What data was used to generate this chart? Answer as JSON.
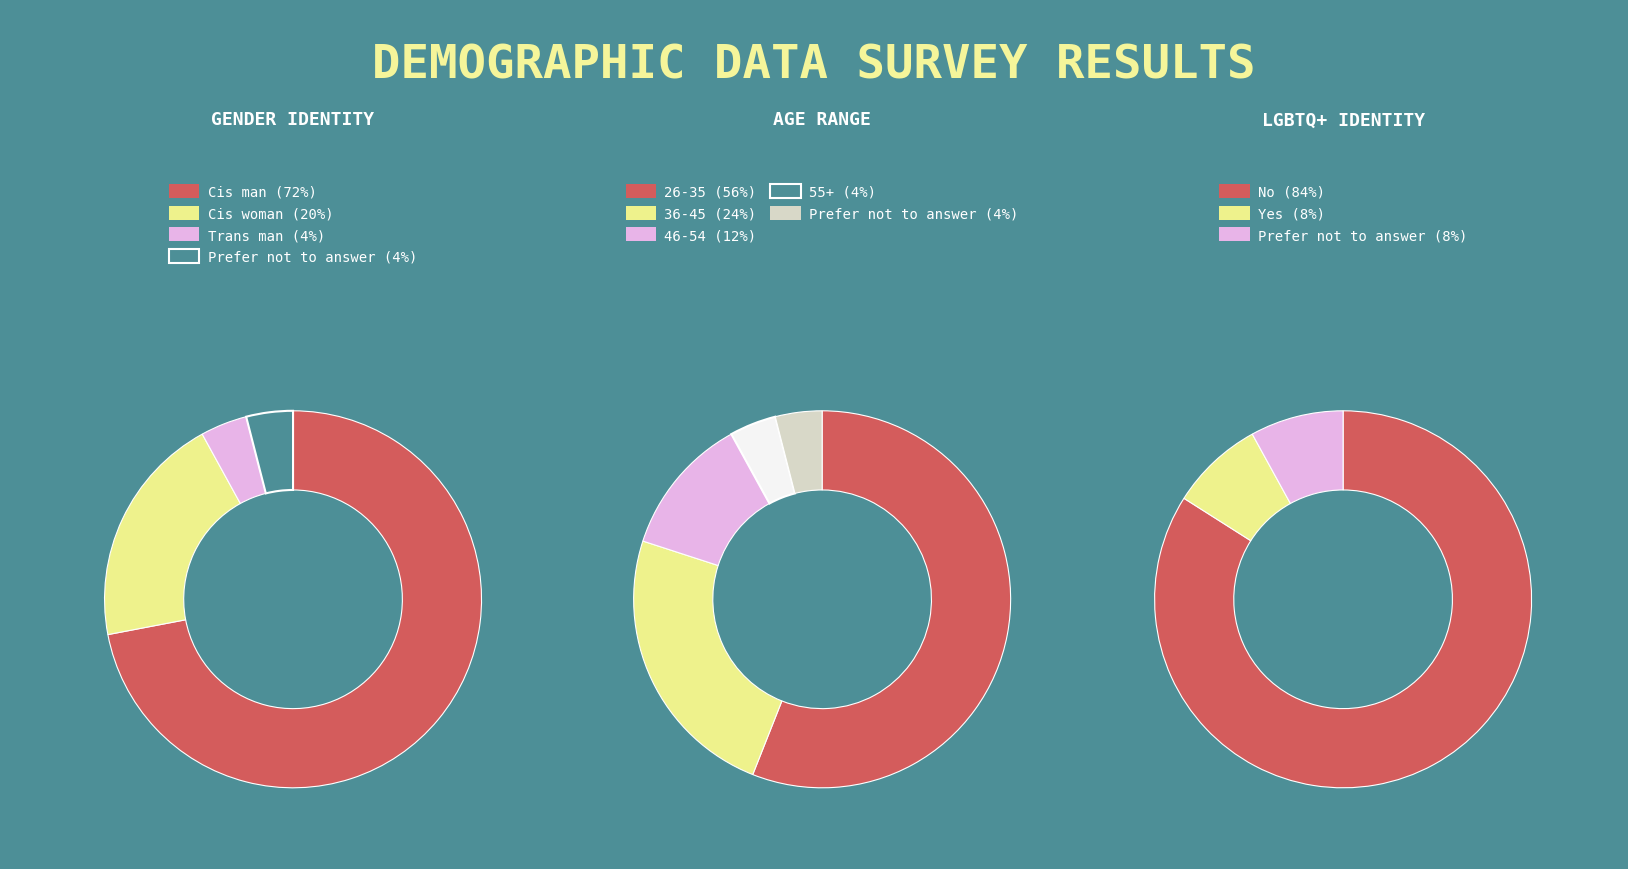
{
  "background_color": "#4d8f97",
  "title": "DEMOGRAPHIC DATA SURVEY RESULTS",
  "title_color": "#f5f59a",
  "title_fontsize": 34,
  "font_family": "monospace",
  "label_color": "#ffffff",
  "charts": [
    {
      "title": "GENDER IDENTITY",
      "labels": [
        "Cis man (72%)",
        "Cis woman (20%)",
        "Trans man (4%)",
        "Prefer not to answer (4%)"
      ],
      "values": [
        72,
        20,
        4,
        4
      ],
      "colors": [
        "#d45c5c",
        "#eef28c",
        "#e8b4e8",
        "#4d8f97"
      ],
      "patch_edge": [
        false,
        false,
        false,
        true
      ],
      "legend_ncol": 1
    },
    {
      "title": "AGE RANGE",
      "labels": [
        "26-35 (56%)",
        "36-45 (24%)",
        "46-54 (12%)",
        "55+ (4%)",
        "Prefer not to answer (4%)"
      ],
      "values": [
        56,
        24,
        12,
        4,
        4
      ],
      "colors": [
        "#d45c5c",
        "#eef28c",
        "#e8b4e8",
        "#f5f5f5",
        "#d8d8c8"
      ],
      "patch_edge": [
        false,
        false,
        false,
        true,
        false
      ],
      "legend_ncol": 2
    },
    {
      "title": "LGBTQ+ IDENTITY",
      "labels": [
        "No (84%)",
        "Yes (8%)",
        "Prefer not to answer (8%)"
      ],
      "values": [
        84,
        8,
        8
      ],
      "colors": [
        "#d45c5c",
        "#eef28c",
        "#e8b4e8"
      ],
      "patch_edge": [
        false,
        false,
        false
      ],
      "legend_ncol": 1
    }
  ]
}
